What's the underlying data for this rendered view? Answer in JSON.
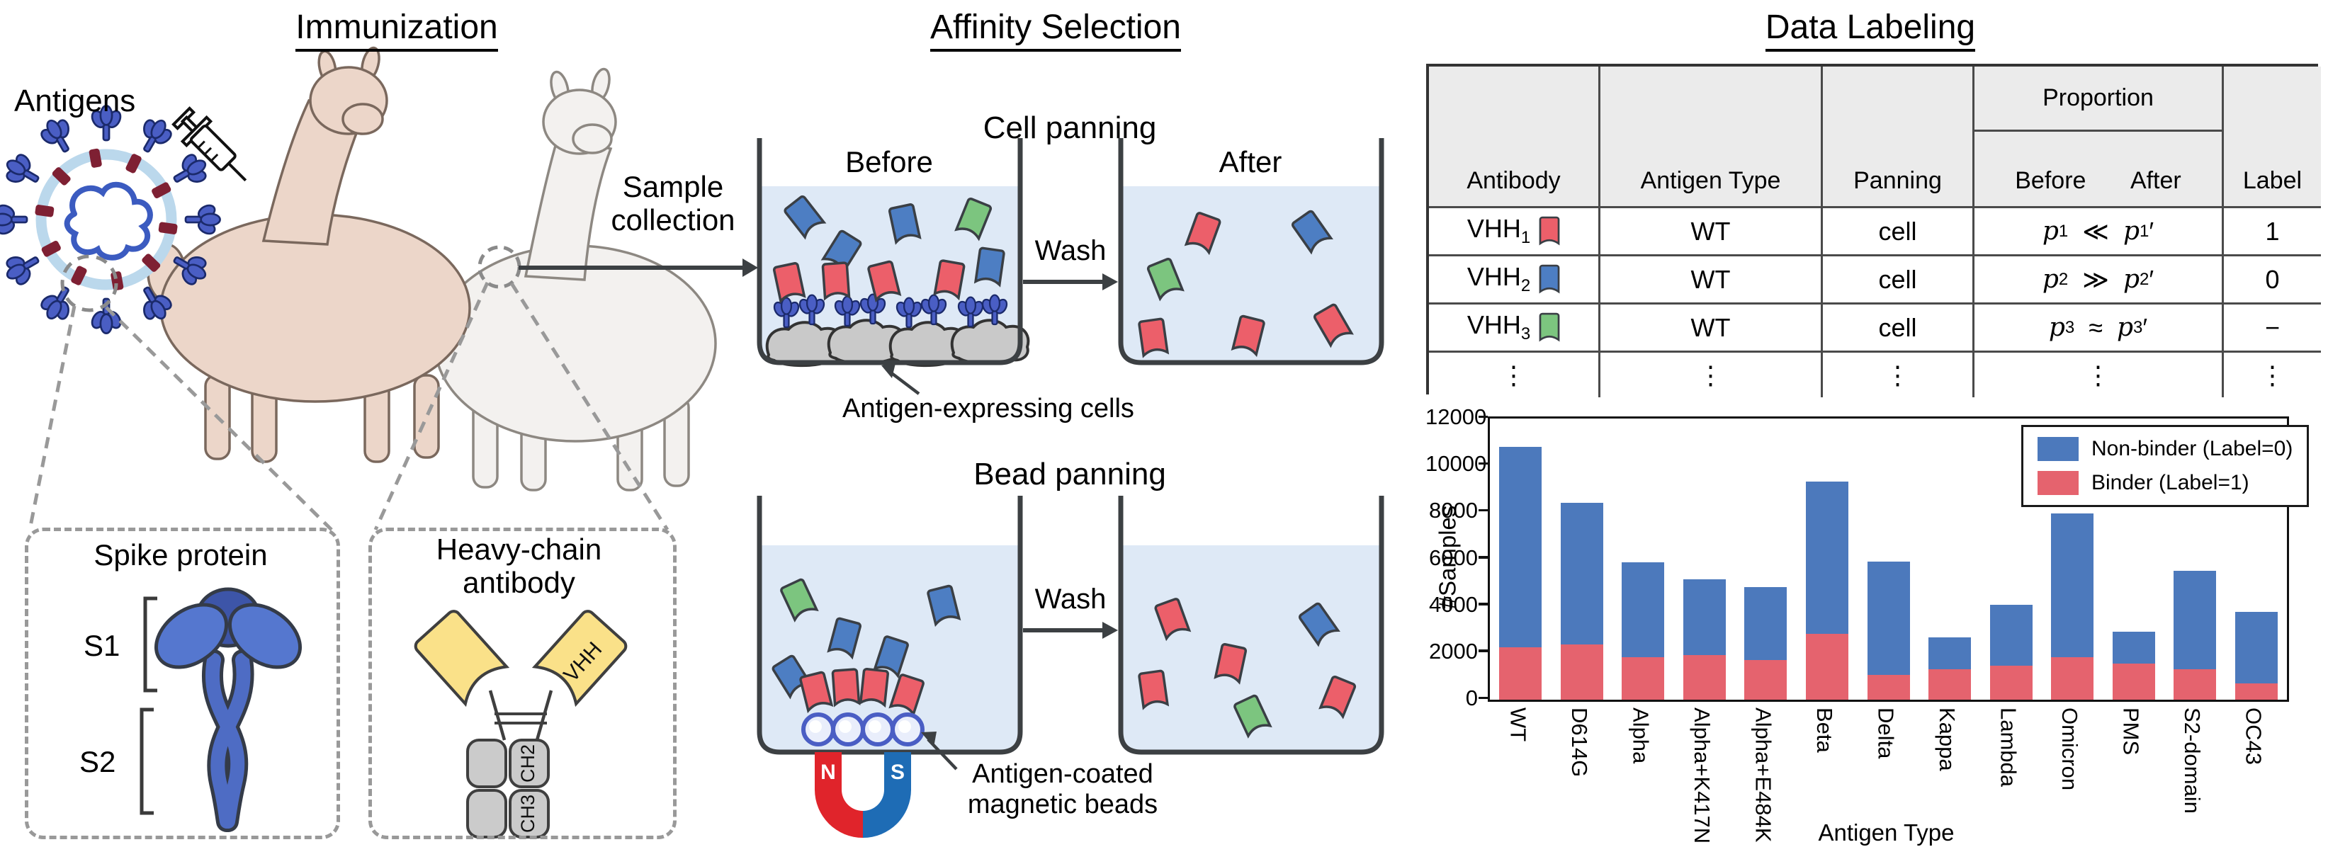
{
  "colors": {
    "antibody_blue": "#4D7EC3",
    "antibody_red": "#EC5F6A",
    "antibody_green": "#7CC57F",
    "liquid": "#DEE9F6",
    "beaker_outline": "#3C4043",
    "cell_gray": "#C9C9C9",
    "spike_blue": "#4A5EC4",
    "virus_membrane_ring": "#BBD8EC",
    "virus_membrane_protein": "#7E2033",
    "virus_rna": "#3B5BC0",
    "vhh_yellow": "#FAE189",
    "chain_gray": "#CBCBCB",
    "magnet_red": "#E0242B",
    "magnet_blue": "#1E6CB5",
    "chart_blue": "#4C79BC",
    "chart_red": "#E5636E",
    "dash_gray": "#999999",
    "table_header_bg": "#EBEBEB"
  },
  "immunization": {
    "title": "Immunization",
    "antigens": "Antigens",
    "sample_line1": "Sample",
    "sample_line2": "collection",
    "spike_box_title": "Spike protein",
    "s1": "S1",
    "s2": "S2",
    "hc_line1": "Heavy-chain",
    "hc_line2": "antibody",
    "vhh": "VHH",
    "ch2": "CH2",
    "ch3": "CH3"
  },
  "affinity": {
    "title": "Affinity Selection",
    "cell_panning": "Cell panning",
    "bead_panning": "Bead panning",
    "before": "Before",
    "after": "After",
    "wash": "Wash",
    "cells_label": "Antigen-expressing cells",
    "beads_line1": "Antigen-coated",
    "beads_line2": "magnetic beads",
    "magnet_n": "N",
    "magnet_s": "S"
  },
  "labeling": {
    "title": "Data Labeling",
    "table": {
      "col_antibody": "Antibody",
      "col_antigen": "Antigen Type",
      "col_panning": "Panning",
      "col_proportion": "Proportion",
      "col_before": "Before",
      "col_after": "After",
      "col_label": "Label",
      "ellipsis": "⋮",
      "rows": [
        {
          "name": "VHH",
          "sub": "1",
          "icon_color": "#EC5F6A",
          "antigen": "WT",
          "panning": "cell",
          "p": "p",
          "relation": "≪",
          "prime": "′",
          "label": "1"
        },
        {
          "name": "VHH",
          "sub": "2",
          "icon_color": "#4D7EC3",
          "antigen": "WT",
          "panning": "cell",
          "p": "p",
          "relation": "≫",
          "prime": "′",
          "label": "0"
        },
        {
          "name": "VHH",
          "sub": "3",
          "icon_color": "#7CC57F",
          "antigen": "WT",
          "panning": "cell",
          "p": "p",
          "relation": "≈",
          "prime": "′",
          "label": "−"
        }
      ]
    }
  },
  "chart_data": {
    "type": "stacked_bar",
    "title": "",
    "xlabel": "Antigen Type",
    "ylabel": "#Samples",
    "ylim": [
      0,
      12000
    ],
    "yticks": [
      0,
      2000,
      4000,
      6000,
      8000,
      10000,
      12000
    ],
    "grid": false,
    "legend_position": "upper right",
    "categories": [
      "WT",
      "D614G",
      "Alpha",
      "Alpha+K417N",
      "Alpha+E484K",
      "Beta",
      "Delta",
      "Kappa",
      "Lambda",
      "Omicron",
      "PMS",
      "S2-domain",
      "OC43"
    ],
    "series": [
      {
        "name": "Binder (Label=1)",
        "color": "#E5636E",
        "values": [
          2250,
          2350,
          1800,
          1900,
          1700,
          2800,
          1050,
          1300,
          1450,
          1800,
          1550,
          1300,
          700
        ]
      },
      {
        "name": "Non-binder (Label=0)",
        "color": "#4C79BC",
        "values": [
          8550,
          6050,
          4050,
          3250,
          3100,
          6500,
          4850,
          1350,
          2600,
          6150,
          1350,
          4200,
          3050
        ]
      }
    ],
    "totals": [
      10800,
      8400,
      5850,
      5150,
      4800,
      9300,
      5900,
      2650,
      4050,
      7950,
      2900,
      5500,
      3750
    ]
  }
}
